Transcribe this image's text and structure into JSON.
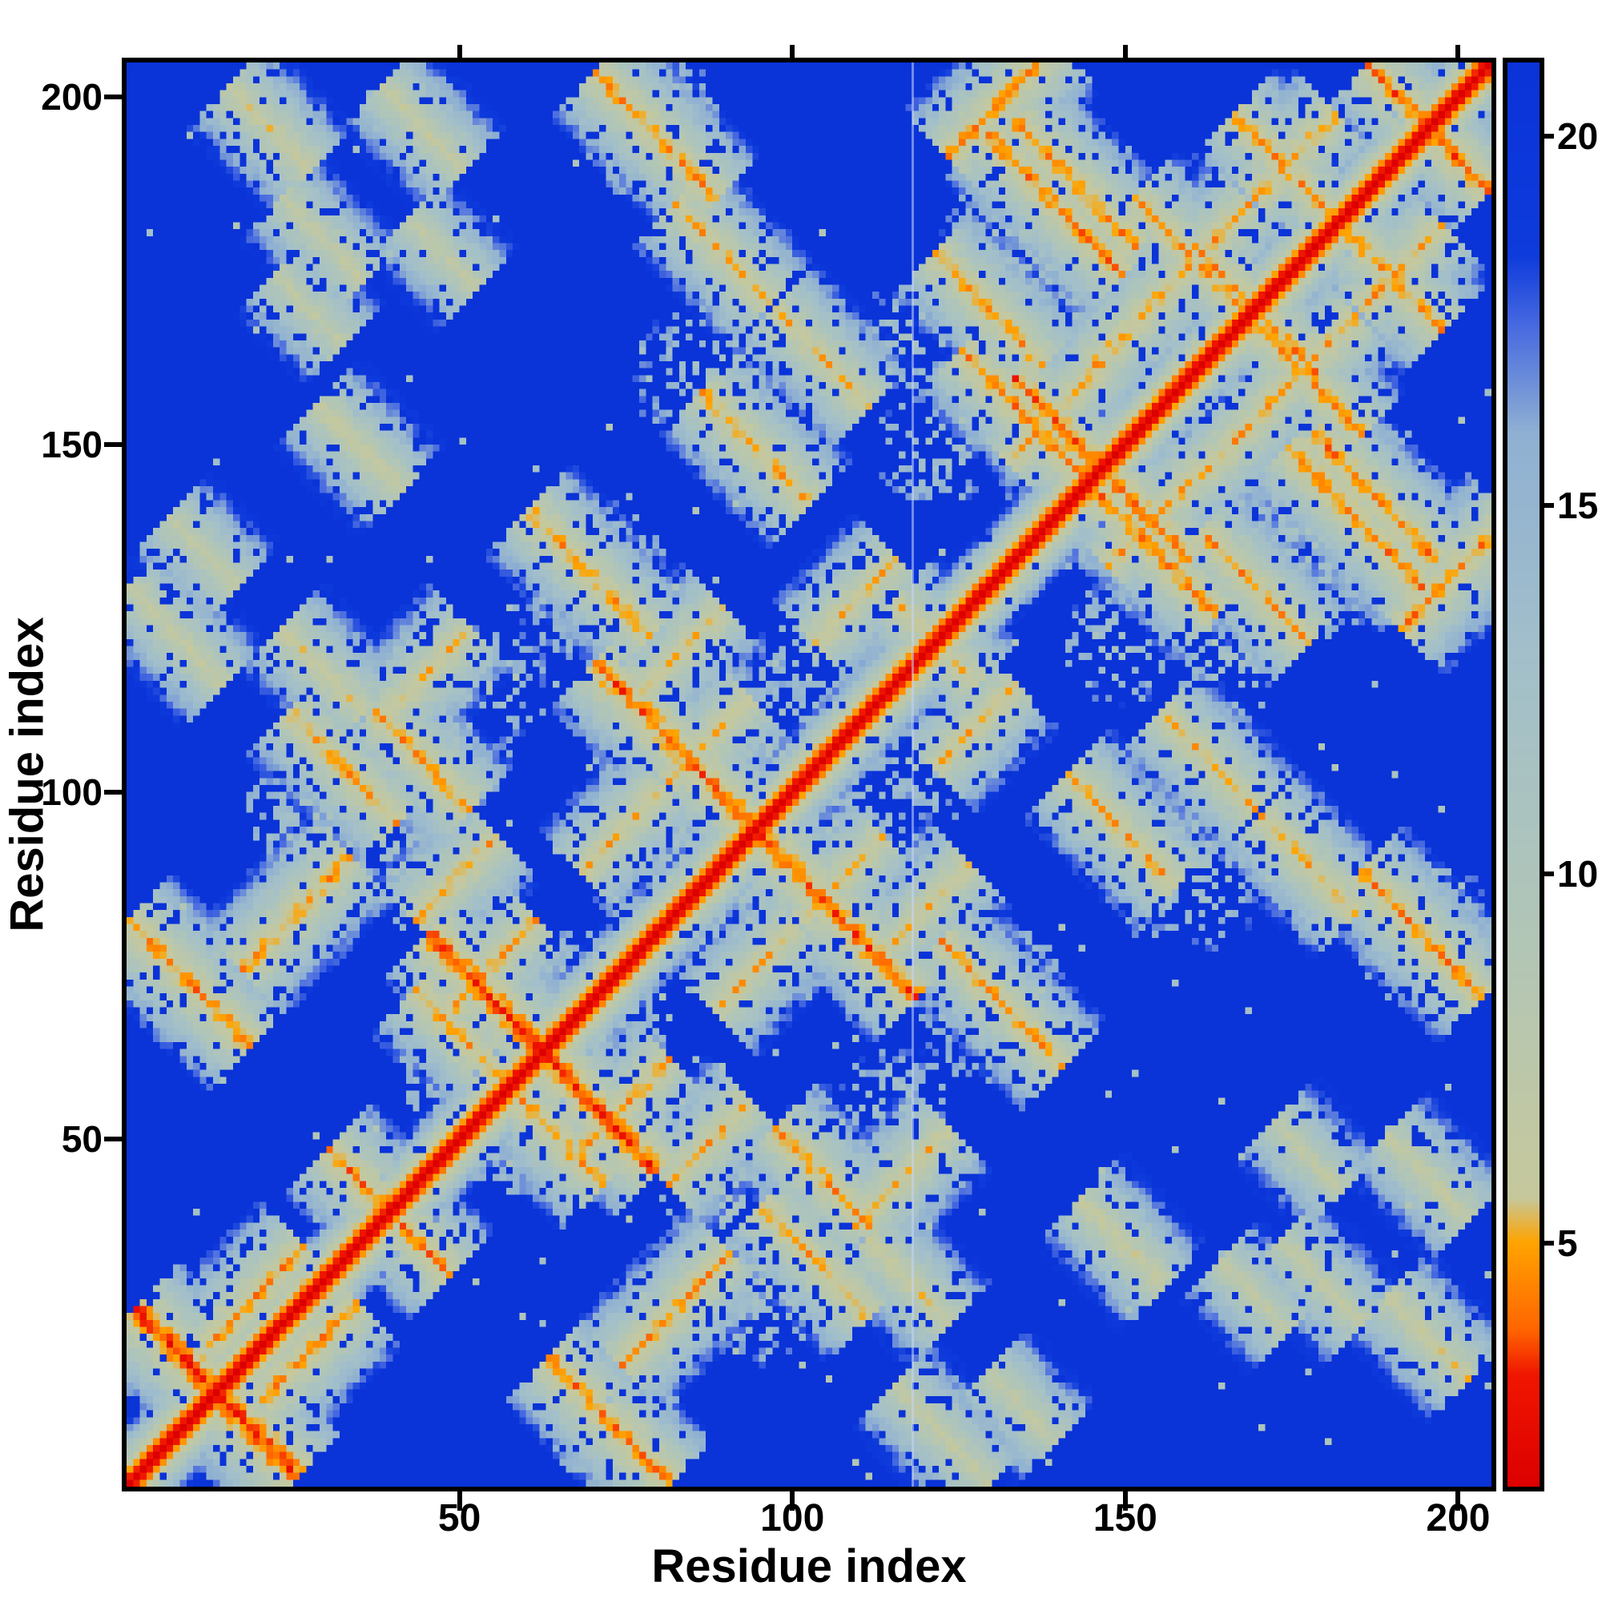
{
  "chart_data": {
    "type": "heatmap",
    "title": "",
    "xlabel": "Residue index",
    "ylabel": "Residue index",
    "x_range": [
      0,
      205
    ],
    "y_range": [
      0,
      205
    ],
    "x_ticks": [
      50,
      100,
      150,
      200
    ],
    "y_ticks": [
      50,
      100,
      150,
      200
    ],
    "grid_on": false,
    "legend": "none",
    "colorbar": {
      "position": "right",
      "ticks": [
        5,
        10,
        15,
        20
      ],
      "vmin": 1.7,
      "vmax": 21
    },
    "colormap_stops": [
      [
        1.7,
        "#dc0000"
      ],
      [
        3.2,
        "#f01600"
      ],
      [
        3.8,
        "#ff6400"
      ],
      [
        5.0,
        "#ffa400"
      ],
      [
        5.6,
        "#c6c89c"
      ],
      [
        9.0,
        "#b2c6b6"
      ],
      [
        13.0,
        "#a2bfca"
      ],
      [
        16.0,
        "#8fb0d2"
      ],
      [
        17.4,
        "#4a6ce0"
      ],
      [
        18.4,
        "#0e3bdc"
      ],
      [
        21.0,
        "#0a33d8"
      ]
    ],
    "grid": {
      "size": 205,
      "background_value": 21,
      "diagonal": {
        "base": 1.7,
        "slope_near": 1.45,
        "slope_far": 2.2
      },
      "chain_break_column": 118,
      "noise_seed": 1337,
      "speckle_probability": 0.005,
      "features": [
        [
          14,
          14,
          12,
          "a",
          3.2
        ],
        [
          40,
          40,
          9,
          "a",
          4.4
        ],
        [
          63,
          63,
          17,
          "a",
          3.4
        ],
        [
          95,
          95,
          24,
          "a",
          3.8
        ],
        [
          122,
          122,
          6,
          "a",
          5.5
        ],
        [
          147,
          147,
          13,
          "a",
          4.0
        ],
        [
          170,
          170,
          9,
          "a",
          4.6
        ],
        [
          196,
          196,
          9,
          "a",
          4.2
        ],
        [
          10,
          73,
          9,
          "a",
          4.4
        ],
        [
          26,
          83,
          8,
          "d",
          4.8
        ],
        [
          8,
          123,
          7,
          "a",
          6.5
        ],
        [
          33,
          104,
          8,
          "a",
          5.0
        ],
        [
          45,
          117,
          7,
          "d",
          5.5
        ],
        [
          52,
          64,
          8,
          "a",
          4.8
        ],
        [
          70,
          132,
          9,
          "a",
          4.8
        ],
        [
          83,
          120,
          7,
          "d",
          5.5
        ],
        [
          95,
          150,
          8,
          "a",
          5.0
        ],
        [
          80,
          195,
          9,
          "a",
          4.6
        ],
        [
          90,
          178,
          7,
          "a",
          5.2
        ],
        [
          105,
          163,
          7,
          "a",
          5.4
        ],
        [
          108,
          88,
          6,
          "d",
          5.4
        ],
        [
          135,
          155,
          9,
          "a",
          4.4
        ],
        [
          130,
          170,
          8,
          "a",
          4.8
        ],
        [
          143,
          188,
          9,
          "a",
          4.4
        ],
        [
          160,
          178,
          8,
          "a",
          4.8
        ],
        [
          155,
          140,
          7,
          "d",
          5.0
        ],
        [
          185,
          140,
          10,
          "a",
          4.4
        ],
        [
          178,
          162,
          7,
          "d",
          5.0
        ],
        [
          190,
          175,
          8,
          "a",
          4.8
        ],
        [
          132,
          200,
          8,
          "d",
          4.6
        ],
        [
          36,
          150,
          6,
          "a",
          6.5
        ],
        [
          30,
          180,
          6,
          "a",
          6.8
        ],
        [
          12,
          135,
          5,
          "a",
          6.8
        ],
        [
          105,
          45,
          7,
          "a",
          4.8
        ],
        [
          88,
          50,
          6,
          "d",
          5.2
        ],
        [
          118,
          30,
          6,
          "a",
          6.0
        ],
        [
          150,
          35,
          6,
          "a",
          6.8
        ],
        [
          170,
          28,
          5,
          "a",
          7.0
        ],
        [
          196,
          22,
          6,
          "a",
          6.0
        ],
        [
          196,
          45,
          6,
          "a",
          6.5
        ],
        [
          178,
          48,
          5,
          "a",
          7.0
        ],
        [
          20,
          28,
          7,
          "d",
          4.6
        ],
        [
          55,
          75,
          7,
          "d",
          5.0
        ],
        [
          75,
          95,
          6,
          "d",
          5.4
        ],
        [
          110,
          128,
          6,
          "d",
          5.4
        ],
        [
          152,
          168,
          6,
          "d",
          5.0
        ],
        [
          176,
          192,
          6,
          "d",
          5.0
        ]
      ],
      "blobs": [
        [
          18,
          18,
          15,
          9.5,
          0.5
        ],
        [
          40,
          40,
          12,
          10,
          0.45
        ],
        [
          62,
          62,
          20,
          9.5,
          0.45
        ],
        [
          95,
          95,
          26,
          10,
          0.4
        ],
        [
          147,
          147,
          16,
          10,
          0.45
        ],
        [
          170,
          170,
          12,
          10,
          0.45
        ],
        [
          196,
          196,
          10,
          10,
          0.5
        ],
        [
          10,
          74,
          10,
          10,
          0.4
        ],
        [
          30,
          96,
          12,
          10.5,
          0.35
        ],
        [
          70,
          131,
          12,
          10.5,
          0.35
        ],
        [
          90,
          160,
          13,
          11,
          0.3
        ],
        [
          80,
          196,
          11,
          10.5,
          0.35
        ],
        [
          140,
          181,
          17,
          10.5,
          0.35
        ],
        [
          165,
          150,
          15,
          10.5,
          0.35
        ],
        [
          186,
          174,
          13,
          10.5,
          0.35
        ],
        [
          196,
          136,
          9,
          10.5,
          0.4
        ],
        [
          108,
          48,
          11,
          11,
          0.3
        ],
        [
          150,
          122,
          9,
          11,
          0.28
        ],
        [
          120,
          104,
          9,
          11,
          0.28
        ],
        [
          55,
          116,
          9,
          11,
          0.3
        ],
        [
          90,
          42,
          9,
          10.5,
          0.33
        ],
        [
          118,
          166,
          8,
          11,
          0.3
        ]
      ]
    }
  }
}
